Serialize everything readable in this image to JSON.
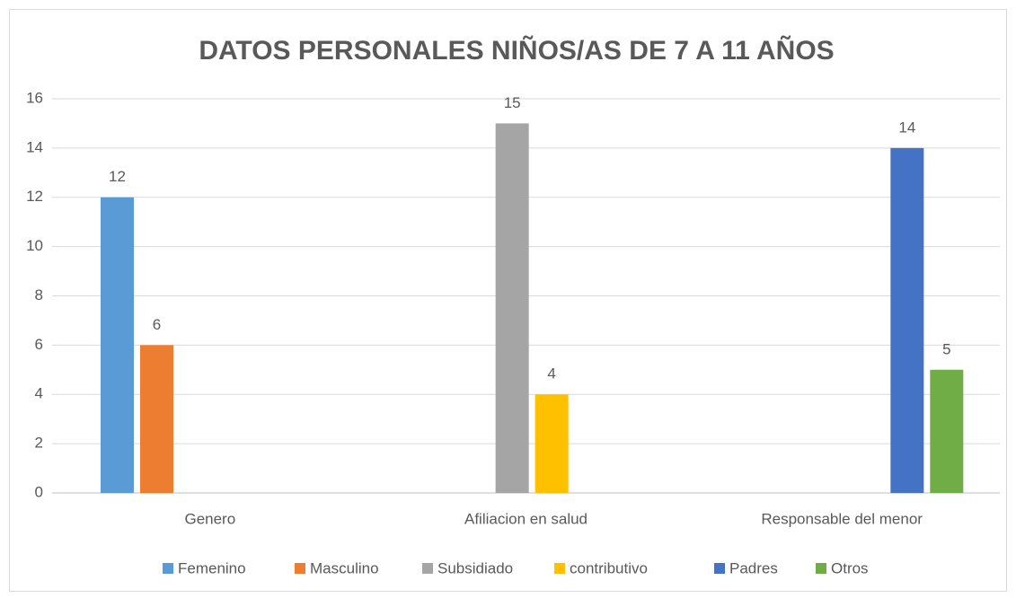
{
  "chart_data": {
    "type": "bar",
    "title": "DATOS PERSONALES NIÑOS/AS DE 7 A 11 AÑOS",
    "categories": [
      "Genero",
      "Afiliacion en salud",
      "Responsable del menor"
    ],
    "series": [
      {
        "name": "Femenino",
        "color": "#5b9bd5",
        "values": [
          12,
          null,
          null
        ]
      },
      {
        "name": "Masculino",
        "color": "#ed7d31",
        "values": [
          6,
          null,
          null
        ]
      },
      {
        "name": "Subsidiado",
        "color": "#a5a5a5",
        "values": [
          null,
          15,
          null
        ]
      },
      {
        "name": "contributivo",
        "color": "#ffc000",
        "values": [
          null,
          4,
          null
        ]
      },
      {
        "name": "Padres",
        "color": "#4472c4",
        "values": [
          null,
          null,
          14
        ]
      },
      {
        "name": "Otros",
        "color": "#70ad47",
        "values": [
          null,
          null,
          5
        ]
      }
    ],
    "ylim": [
      0,
      16
    ],
    "yticks": [
      0,
      2,
      4,
      6,
      8,
      10,
      12,
      14,
      16
    ],
    "grid": true,
    "legend": "bottom"
  }
}
